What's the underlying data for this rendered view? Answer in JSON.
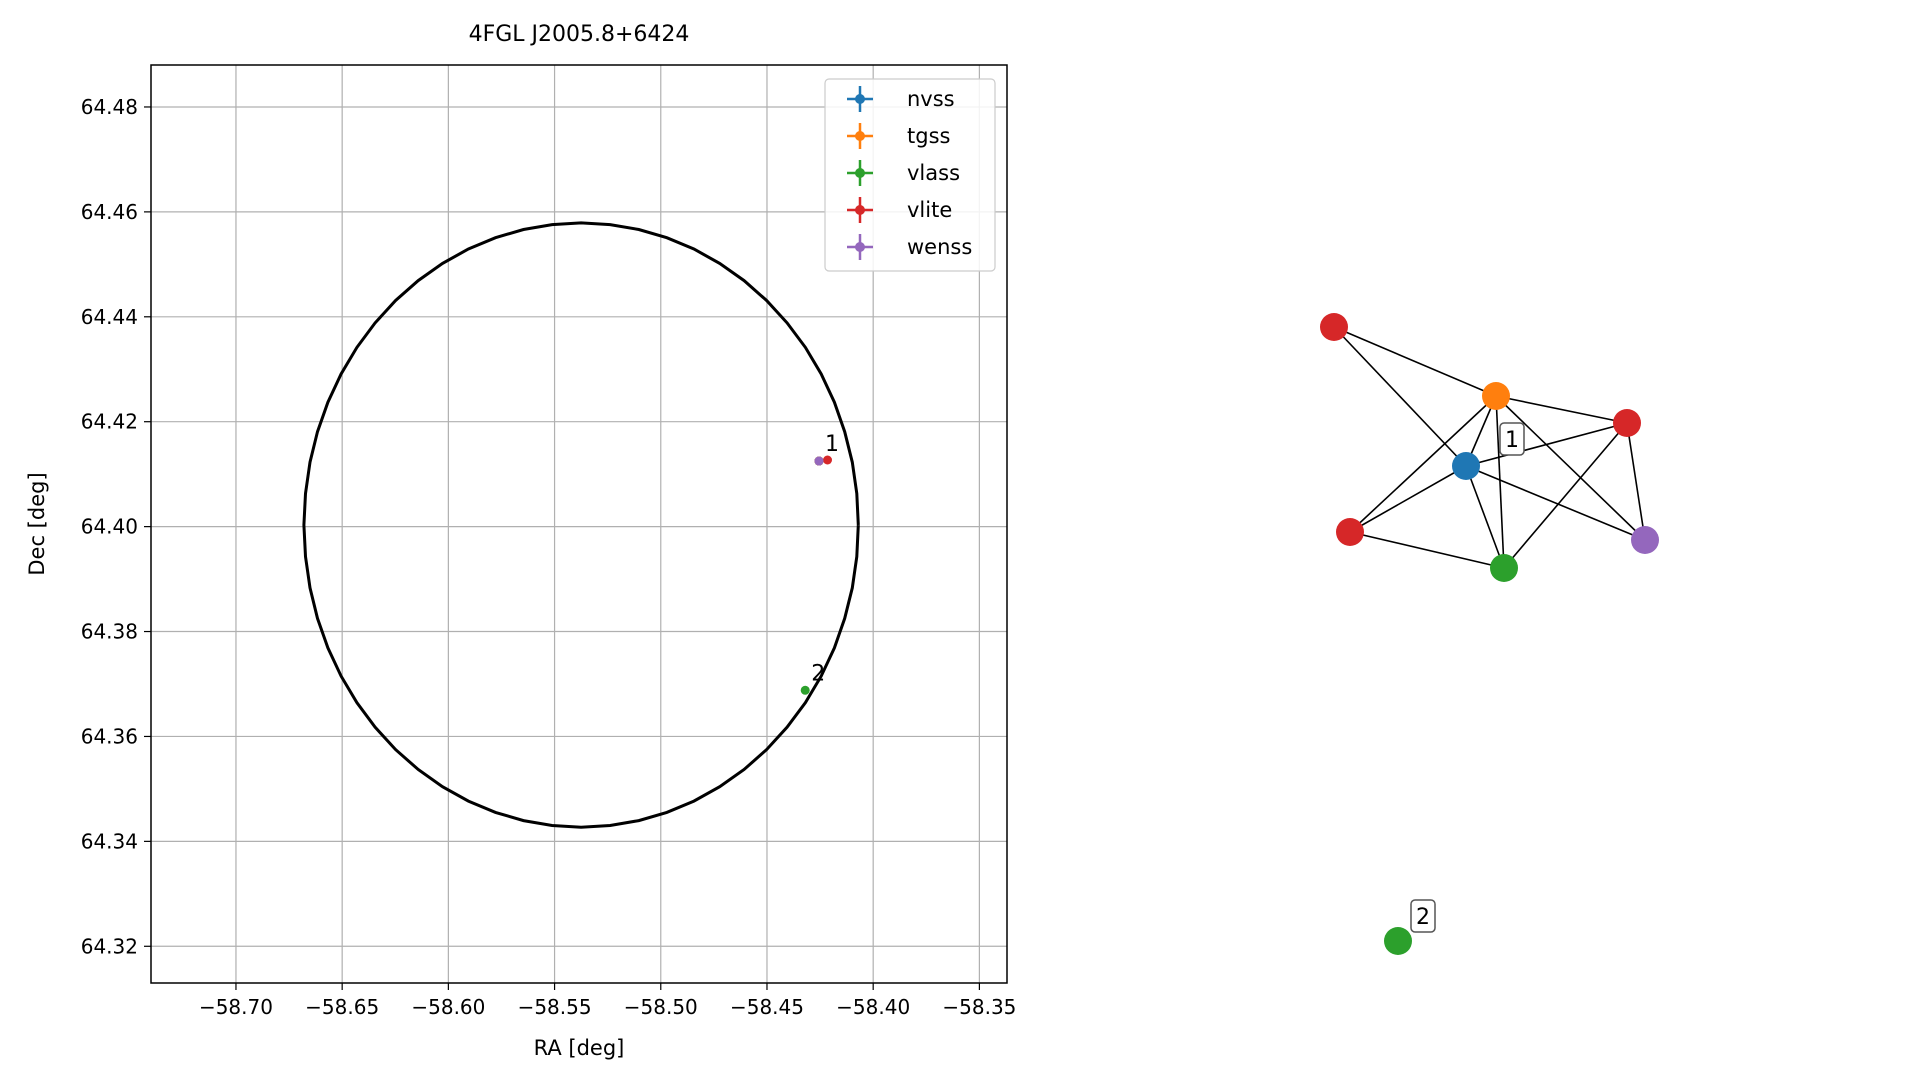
{
  "chart_data": [
    {
      "type": "scatter",
      "title": "4FGL J2005.8+6424",
      "xlabel": "RA [deg]",
      "ylabel": "Dec [deg]",
      "xlim": [
        -58.74,
        -58.337
      ],
      "ylim": [
        64.313,
        64.488
      ],
      "xticks": [
        -58.7,
        -58.65,
        -58.6,
        -58.55,
        -58.5,
        -58.45,
        -58.4,
        -58.35
      ],
      "xtick_labels": [
        "−58.70",
        "−58.65",
        "−58.60",
        "−58.55",
        "−58.50",
        "−58.45",
        "−58.40",
        "−58.35"
      ],
      "yticks": [
        64.32,
        64.34,
        64.36,
        64.38,
        64.4,
        64.42,
        64.44,
        64.46,
        64.48
      ],
      "ytick_labels": [
        "64.32",
        "64.34",
        "64.36",
        "64.38",
        "64.40",
        "64.42",
        "64.44",
        "64.46",
        "64.48"
      ],
      "grid": true,
      "legend_position": "top-right",
      "series": [
        {
          "name": "nvss",
          "color": "#1f77b4",
          "points": [
            {
              "x": -58.4255,
              "y": 64.4125
            }
          ]
        },
        {
          "name": "tgss",
          "color": "#ff7f0e",
          "points": [
            {
              "x": -58.4255,
              "y": 64.4125
            }
          ]
        },
        {
          "name": "vlass",
          "color": "#2ca02c",
          "points": [
            {
              "x": -58.4255,
              "y": 64.4125
            },
            {
              "x": -58.432,
              "y": 64.3688
            }
          ]
        },
        {
          "name": "vlite",
          "color": "#d62728",
          "points": [
            {
              "x": -58.4255,
              "y": 64.4125
            },
            {
              "x": -58.4215,
              "y": 64.4127
            }
          ]
        },
        {
          "name": "wenss",
          "color": "#9467bd",
          "points": [
            {
              "x": -58.4255,
              "y": 64.4125
            }
          ]
        }
      ],
      "ellipse": {
        "center_x": -58.5375,
        "center_y": 64.4003,
        "semi_axis_ra": 0.1305,
        "semi_axis_dec": 0.0576,
        "color": "#000000"
      },
      "annotations": [
        {
          "text": "1",
          "x": -58.4255,
          "y": 64.4125
        },
        {
          "text": "2",
          "x": -58.432,
          "y": 64.3688
        }
      ]
    },
    {
      "type": "network",
      "nodes": [
        {
          "id": "vlite_a",
          "color": "#d62728"
        },
        {
          "id": "tgss",
          "color": "#ff7f0e"
        },
        {
          "id": "vlite_b",
          "color": "#d62728"
        },
        {
          "id": "nvss",
          "color": "#1f77b4"
        },
        {
          "id": "vlite_c",
          "color": "#d62728"
        },
        {
          "id": "wenss",
          "color": "#9467bd"
        },
        {
          "id": "vlass_a",
          "color": "#2ca02c"
        },
        {
          "id": "vlass_b",
          "color": "#2ca02c"
        }
      ],
      "edges": [
        [
          "vlite_a",
          "tgss"
        ],
        [
          "vlite_a",
          "nvss"
        ],
        [
          "tgss",
          "vlite_b"
        ],
        [
          "tgss",
          "nvss"
        ],
        [
          "tgss",
          "vlite_c"
        ],
        [
          "tgss",
          "vlass_a"
        ],
        [
          "tgss",
          "wenss"
        ],
        [
          "vlite_b",
          "nvss"
        ],
        [
          "vlite_b",
          "wenss"
        ],
        [
          "vlite_b",
          "vlass_a"
        ],
        [
          "nvss",
          "vlite_c"
        ],
        [
          "nvss",
          "wenss"
        ],
        [
          "nvss",
          "vlass_a"
        ],
        [
          "vlite_c",
          "vlass_a"
        ]
      ],
      "labels": [
        {
          "text": "1",
          "near": "nvss"
        },
        {
          "text": "2",
          "near": "vlass_b"
        }
      ]
    }
  ]
}
